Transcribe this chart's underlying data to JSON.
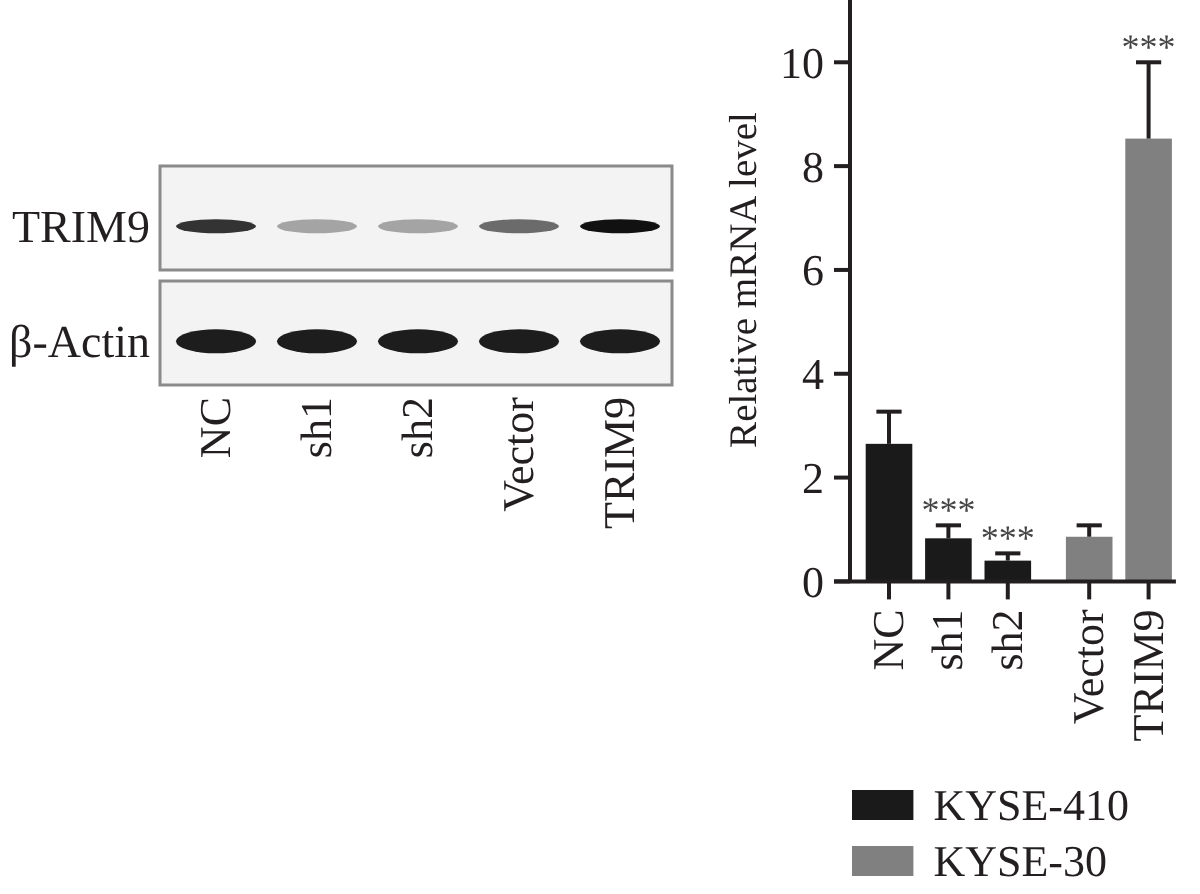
{
  "chart_data": [
    {
      "type": "other",
      "categories": [
        "NC",
        "sh1",
        "sh2",
        "Vector",
        "TRIM9"
      ],
      "y_categories": [
        "TRIM9",
        "β-Actin"
      ]
    },
    {
      "type": "bar",
      "ylabel": "Relative mRNA level",
      "categories": [
        "NC",
        "sh1",
        "sh2",
        "Vector",
        "TRIM9"
      ],
      "series": [
        {
          "name": "KYSE-410",
          "color": "#1a1a1a",
          "values": [
            2.65,
            0.83,
            0.4,
            null,
            null
          ],
          "errors": [
            [
              2.65,
              3.27
            ],
            [
              0.83,
              1.08
            ],
            [
              0.4,
              0.54
            ],
            null,
            null
          ]
        },
        {
          "name": "KYSE-30",
          "color": "#808080",
          "values": [
            null,
            null,
            null,
            0.86,
            8.53
          ],
          "errors": [
            null,
            null,
            null,
            [
              0.86,
              1.08
            ],
            [
              8.53,
              10.0
            ]
          ]
        }
      ],
      "ylim": [
        0,
        11.2
      ],
      "yticks": [
        0,
        2,
        4,
        6,
        8,
        10
      ],
      "legend": "bottom",
      "annotations": [
        {
          "text": "***",
          "x": "sh1",
          "y": 1.08
        },
        {
          "text": "***",
          "x": "sh2",
          "y": 0.54
        },
        {
          "text": "***",
          "x": "TRIM9",
          "y": 10.0
        }
      ]
    }
  ]
}
